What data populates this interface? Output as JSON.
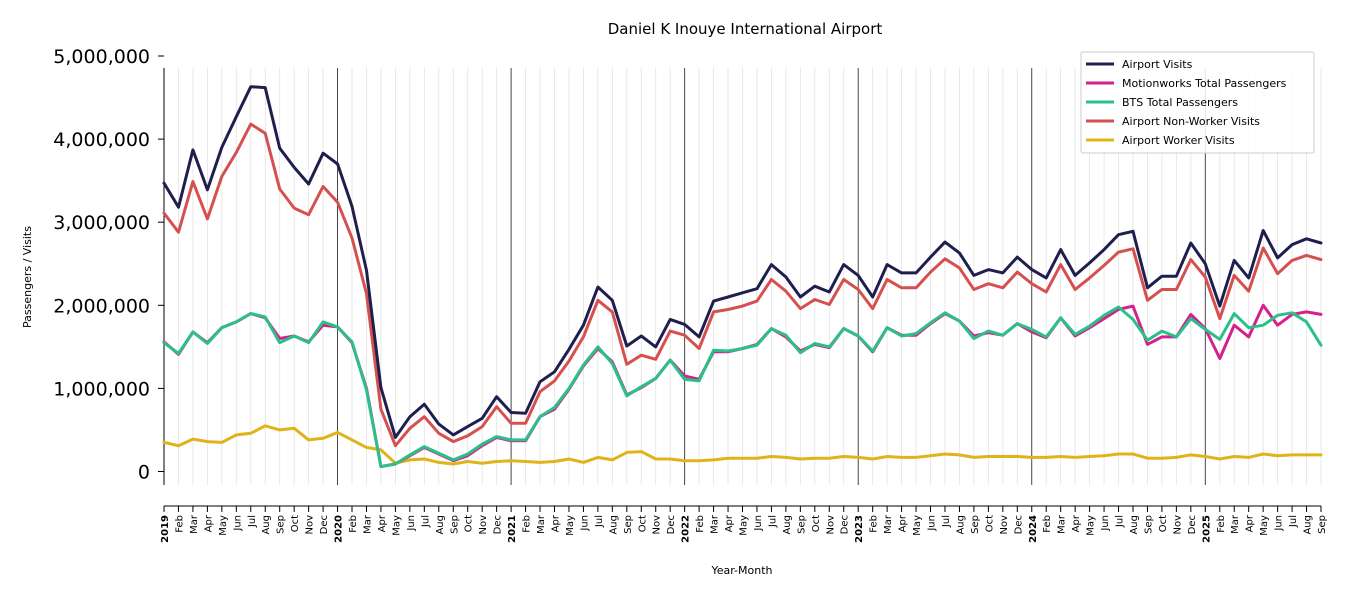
{
  "chart_data": {
    "type": "line",
    "title": "Daniel K Inouye International Airport",
    "xlabel": "Year-Month",
    "ylabel": "Passengers / Visits",
    "ylim": [
      -150000,
      5000000
    ],
    "yticks": [
      0,
      1000000,
      2000000,
      3000000,
      4000000,
      5000000
    ],
    "ytick_labels": [
      "0",
      "1,000,000",
      "2,000,000",
      "3,000,000",
      "4,000,000",
      "5,000,000"
    ],
    "grid": "vertical monthly gridlines; darker lines at each January",
    "legend_position": "top-right",
    "x": [
      "2019-01",
      "2019-02",
      "2019-03",
      "2019-04",
      "2019-05",
      "2019-06",
      "2019-07",
      "2019-08",
      "2019-09",
      "2019-10",
      "2019-11",
      "2019-12",
      "2020-01",
      "2020-02",
      "2020-03",
      "2020-04",
      "2020-05",
      "2020-06",
      "2020-07",
      "2020-08",
      "2020-09",
      "2020-10",
      "2020-11",
      "2020-12",
      "2021-01",
      "2021-02",
      "2021-03",
      "2021-04",
      "2021-05",
      "2021-06",
      "2021-07",
      "2021-08",
      "2021-09",
      "2021-10",
      "2021-11",
      "2021-12",
      "2022-01",
      "2022-02",
      "2022-03",
      "2022-04",
      "2022-05",
      "2022-06",
      "2022-07",
      "2022-08",
      "2022-09",
      "2022-10",
      "2022-11",
      "2022-12",
      "2023-01",
      "2023-02",
      "2023-03",
      "2023-04",
      "2023-05",
      "2023-06",
      "2023-07",
      "2023-08",
      "2023-09",
      "2023-10",
      "2023-11",
      "2023-12",
      "2024-01",
      "2024-02",
      "2024-03",
      "2024-04",
      "2024-05",
      "2024-06",
      "2024-07",
      "2024-08",
      "2024-09",
      "2024-10",
      "2024-11",
      "2024-12",
      "2025-01",
      "2025-02",
      "2025-03",
      "2025-04",
      "2025-05",
      "2025-06",
      "2025-07",
      "2025-08",
      "2025-09"
    ],
    "x_tick_labels": [
      "2019",
      "Feb",
      "Mar",
      "Apr",
      "May",
      "Jun",
      "Jul",
      "Aug",
      "Sep",
      "Oct",
      "Nov",
      "Dec",
      "2020",
      "Feb",
      "Mar",
      "Apr",
      "May",
      "Jun",
      "Jul",
      "Aug",
      "Sep",
      "Oct",
      "Nov",
      "Dec",
      "2021",
      "Feb",
      "Mar",
      "Apr",
      "May",
      "Jun",
      "Jul",
      "Aug",
      "Sep",
      "Oct",
      "Nov",
      "Dec",
      "2022",
      "Feb",
      "Mar",
      "Apr",
      "May",
      "Jun",
      "Jul",
      "Aug",
      "Sep",
      "Oct",
      "Nov",
      "Dec",
      "2023",
      "Feb",
      "Mar",
      "Apr",
      "May",
      "Jun",
      "Jul",
      "Aug",
      "Sep",
      "Oct",
      "Nov",
      "Dec",
      "2024",
      "Feb",
      "Mar",
      "Apr",
      "May",
      "Jun",
      "Jul",
      "Aug",
      "Sep",
      "Oct",
      "Nov",
      "Dec",
      "2025",
      "Feb",
      "Mar",
      "Apr",
      "May",
      "Jun",
      "Jul",
      "Aug",
      "Sep"
    ],
    "series": [
      {
        "name": "Airport Visits",
        "color": "#1f1f4f",
        "values": [
          3470000,
          3180000,
          3870000,
          3390000,
          3900000,
          4270000,
          4630000,
          4620000,
          3890000,
          3660000,
          3460000,
          3830000,
          3700000,
          3190000,
          2420000,
          1010000,
          410000,
          660000,
          810000,
          570000,
          440000,
          540000,
          640000,
          900000,
          710000,
          700000,
          1080000,
          1200000,
          1470000,
          1760000,
          2220000,
          2060000,
          1510000,
          1630000,
          1500000,
          1830000,
          1770000,
          1620000,
          2050000,
          2100000,
          2150000,
          2200000,
          2490000,
          2340000,
          2100000,
          2230000,
          2160000,
          2490000,
          2360000,
          2100000,
          2490000,
          2390000,
          2390000,
          2580000,
          2760000,
          2630000,
          2360000,
          2430000,
          2390000,
          2580000,
          2430000,
          2330000,
          2670000,
          2360000,
          2510000,
          2670000,
          2850000,
          2890000,
          2210000,
          2350000,
          2350000,
          2750000,
          2500000,
          1990000,
          2540000,
          2330000,
          2900000,
          2570000,
          2730000,
          2800000,
          2750000
        ]
      },
      {
        "name": "Motionworks Total Passengers",
        "color": "#d4218e",
        "values": [
          1560000,
          1410000,
          1680000,
          1550000,
          1730000,
          1800000,
          1900000,
          1850000,
          1600000,
          1630000,
          1560000,
          1760000,
          1740000,
          1550000,
          1000000,
          60000,
          90000,
          190000,
          290000,
          210000,
          130000,
          190000,
          310000,
          410000,
          370000,
          370000,
          660000,
          750000,
          990000,
          1270000,
          1480000,
          1320000,
          920000,
          1010000,
          1120000,
          1340000,
          1150000,
          1110000,
          1440000,
          1440000,
          1480000,
          1530000,
          1720000,
          1620000,
          1450000,
          1530000,
          1490000,
          1720000,
          1630000,
          1440000,
          1730000,
          1640000,
          1640000,
          1780000,
          1900000,
          1810000,
          1630000,
          1670000,
          1640000,
          1780000,
          1680000,
          1610000,
          1850000,
          1630000,
          1730000,
          1840000,
          1950000,
          1990000,
          1530000,
          1620000,
          1620000,
          1890000,
          1720000,
          1360000,
          1760000,
          1620000,
          2000000,
          1760000,
          1890000,
          1920000,
          1890000
        ]
      },
      {
        "name": "BTS Total Passengers",
        "color": "#2bbf8a",
        "values": [
          1550000,
          1420000,
          1680000,
          1540000,
          1730000,
          1800000,
          1900000,
          1860000,
          1550000,
          1630000,
          1550000,
          1800000,
          1740000,
          1560000,
          980000,
          60000,
          90000,
          200000,
          300000,
          220000,
          140000,
          210000,
          330000,
          420000,
          380000,
          380000,
          660000,
          770000,
          1000000,
          1280000,
          1500000,
          1300000,
          910000,
          1020000,
          1120000,
          1340000,
          1110000,
          1090000,
          1460000,
          1450000,
          1480000,
          1520000,
          1720000,
          1640000,
          1430000,
          1540000,
          1500000,
          1720000,
          1630000,
          1450000,
          1730000,
          1630000,
          1660000,
          1790000,
          1910000,
          1810000,
          1600000,
          1690000,
          1640000,
          1780000,
          1710000,
          1620000,
          1850000,
          1650000,
          1750000,
          1880000,
          1980000,
          1830000,
          1580000,
          1690000,
          1620000,
          1840000,
          1710000,
          1590000,
          1900000,
          1730000,
          1760000,
          1880000,
          1910000,
          1800000,
          1520000
        ]
      },
      {
        "name": "Airport Non-Worker Visits",
        "color": "#d65050",
        "values": [
          3110000,
          2880000,
          3490000,
          3040000,
          3550000,
          3840000,
          4180000,
          4070000,
          3400000,
          3170000,
          3090000,
          3430000,
          3240000,
          2810000,
          2140000,
          750000,
          310000,
          520000,
          660000,
          460000,
          360000,
          430000,
          540000,
          780000,
          580000,
          580000,
          960000,
          1090000,
          1330000,
          1620000,
          2060000,
          1920000,
          1290000,
          1400000,
          1350000,
          1690000,
          1640000,
          1480000,
          1920000,
          1950000,
          1990000,
          2050000,
          2310000,
          2170000,
          1960000,
          2070000,
          2010000,
          2310000,
          2190000,
          1960000,
          2310000,
          2210000,
          2210000,
          2400000,
          2560000,
          2450000,
          2190000,
          2260000,
          2210000,
          2400000,
          2260000,
          2160000,
          2490000,
          2190000,
          2330000,
          2480000,
          2640000,
          2680000,
          2060000,
          2190000,
          2190000,
          2550000,
          2340000,
          1840000,
          2360000,
          2170000,
          2690000,
          2380000,
          2540000,
          2600000,
          2550000
        ]
      },
      {
        "name": "Airport Worker Visits",
        "color": "#e0b31a",
        "values": [
          350000,
          310000,
          390000,
          360000,
          350000,
          440000,
          460000,
          550000,
          500000,
          520000,
          380000,
          400000,
          470000,
          380000,
          290000,
          260000,
          100000,
          140000,
          150000,
          110000,
          90000,
          120000,
          100000,
          120000,
          130000,
          120000,
          110000,
          120000,
          150000,
          110000,
          170000,
          140000,
          230000,
          240000,
          150000,
          150000,
          130000,
          130000,
          140000,
          160000,
          160000,
          160000,
          180000,
          170000,
          150000,
          160000,
          160000,
          180000,
          170000,
          150000,
          180000,
          170000,
          170000,
          190000,
          210000,
          200000,
          170000,
          180000,
          180000,
          180000,
          170000,
          170000,
          180000,
          170000,
          180000,
          190000,
          210000,
          210000,
          160000,
          160000,
          170000,
          200000,
          180000,
          150000,
          180000,
          170000,
          210000,
          190000,
          200000,
          200000,
          200000
        ]
      }
    ]
  }
}
